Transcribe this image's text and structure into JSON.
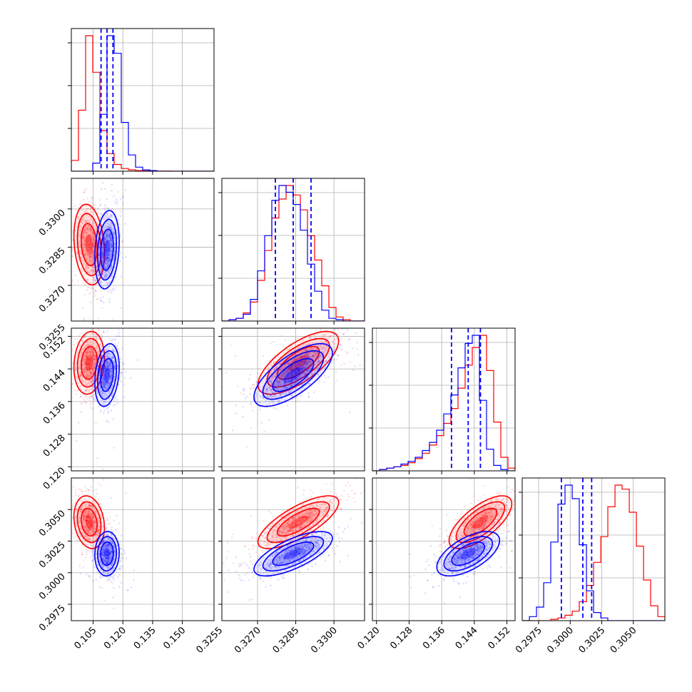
{
  "colors": {
    "series_a": "#ff0000",
    "series_b": "#0000ff",
    "grid": "#b0b0b0",
    "axis": "#000000"
  },
  "chart_data": {
    "type": "scatter",
    "variant": "corner-plot",
    "title": "",
    "grid": true,
    "legend": "none",
    "parameters": [
      {
        "xlim": [
          0.094,
          0.166
        ],
        "ticks": [
          "0.105",
          "0.120",
          "0.135",
          "0.150"
        ],
        "tick_values": [
          0.105,
          0.12,
          0.135,
          0.15
        ]
      },
      {
        "xlim": [
          0.3256,
          0.3312
        ],
        "ticks": [
          "0.3255",
          "0.3270",
          "0.3285",
          "0.3300"
        ],
        "tick_values": [
          0.3255,
          0.327,
          0.3285,
          0.33
        ]
      },
      {
        "xlim": [
          0.119,
          0.154
        ],
        "ticks": [
          "0.120",
          "0.128",
          "0.136",
          "0.144",
          "0.152"
        ],
        "tick_values": [
          0.12,
          0.128,
          0.136,
          0.144,
          0.152
        ]
      },
      {
        "xlim": [
          0.2962,
          0.3075
        ],
        "ticks": [
          "0.2975",
          "0.3000",
          "0.3025",
          "0.3050"
        ],
        "tick_values": [
          0.2975,
          0.3,
          0.3025,
          0.305
        ]
      }
    ],
    "series": [
      {
        "color": "#ff0000",
        "means": [
          0.103,
          0.3286,
          0.1455,
          0.304
        ],
        "sds": [
          0.0035,
          0.00072,
          0.0035,
          0.00095
        ],
        "correlations": {
          "0-1": -0.2,
          "0-2": 0.15,
          "0-3": -0.2,
          "1-2": 0.7,
          "1-3": 0.75,
          "2-3": 0.7
        },
        "histograms": [
          {
            "edges": [
              0.094,
              0.0976,
              0.1012,
              0.1048,
              0.1084,
              0.112,
              0.1156,
              0.1192,
              0.1228,
              0.1264,
              0.13,
              0.1336,
              0.1372,
              0.1408,
              0.1444,
              0.148,
              0.1516,
              0.1552,
              0.1588,
              0.1624,
              0.166
            ],
            "counts": [
              0.08,
              0.45,
              1.0,
              0.73,
              0.3,
              0.13,
              0.05,
              0.02,
              0.01,
              0.005,
              0.003,
              0.002,
              0.001,
              0.001,
              0,
              0,
              0,
              0,
              0,
              0
            ]
          },
          {
            "edges": [
              0.3256,
              0.32588,
              0.32616,
              0.32644,
              0.32672,
              0.327,
              0.32728,
              0.32756,
              0.32784,
              0.32812,
              0.3284,
              0.32868,
              0.32896,
              0.32924,
              0.32952,
              0.3298,
              0.33008,
              0.33036,
              0.33064,
              0.33092,
              0.3312
            ],
            "counts": [
              0,
              0.01,
              0.02,
              0.06,
              0.14,
              0.3,
              0.52,
              0.76,
              0.9,
              1.0,
              0.93,
              0.82,
              0.63,
              0.45,
              0.26,
              0.1,
              0.03,
              0.01,
              0,
              0
            ]
          },
          {
            "edges": [
              0.119,
              0.12075,
              0.1225,
              0.12425,
              0.126,
              0.12775,
              0.1295,
              0.13125,
              0.133,
              0.13475,
              0.1365,
              0.13825,
              0.14,
              0.14175,
              0.1435,
              0.14525,
              0.147,
              0.14875,
              0.1505,
              0.15225,
              0.154
            ],
            "counts": [
              0,
              0.01,
              0.02,
              0.03,
              0.04,
              0.06,
              0.09,
              0.13,
              0.19,
              0.26,
              0.35,
              0.46,
              0.61,
              0.78,
              0.91,
              1.0,
              0.74,
              0.36,
              0.1,
              0.02
            ]
          },
          {
            "edges": [
              0.2962,
              0.29677,
              0.29733,
              0.2979,
              0.29846,
              0.29903,
              0.29959,
              0.30016,
              0.30072,
              0.30129,
              0.30185,
              0.30242,
              0.30298,
              0.30355,
              0.30411,
              0.30468,
              0.30524,
              0.30581,
              0.30637,
              0.30694,
              0.3075
            ],
            "counts": [
              0,
              0,
              0,
              0,
              0.01,
              0.02,
              0.04,
              0.07,
              0.14,
              0.26,
              0.43,
              0.62,
              0.84,
              1.0,
              0.97,
              0.8,
              0.55,
              0.3,
              0.11,
              0.03
            ]
          }
        ]
      },
      {
        "color": "#0000ff",
        "means": [
          0.112,
          0.3284,
          0.1425,
          0.3015
        ],
        "sds": [
          0.0028,
          0.0007,
          0.0035,
          0.0008
        ],
        "correlations": {
          "0-1": 0.2,
          "0-2": 0.25,
          "0-3": 0.05,
          "1-2": 0.7,
          "1-3": 0.7,
          "2-3": 0.6
        },
        "quantile_lines": [
          [
            0.109,
            0.112,
            0.115
          ],
          [
            0.3277,
            0.3284,
            0.3291
          ],
          [
            0.1384,
            0.1425,
            0.1455
          ],
          [
            0.2993,
            0.301,
            0.3017
          ]
        ],
        "histograms": [
          {
            "edges": [
              0.094,
              0.0976,
              0.1012,
              0.1048,
              0.1084,
              0.112,
              0.1156,
              0.1192,
              0.1228,
              0.1264,
              0.13,
              0.1336,
              0.1372,
              0.1408,
              0.1444,
              0.148,
              0.1516,
              0.1552,
              0.1588,
              0.1624,
              0.166
            ],
            "counts": [
              0,
              0,
              0,
              0.06,
              0.42,
              1.0,
              0.87,
              0.36,
              0.12,
              0.03,
              0.01,
              0.005,
              0,
              0,
              0,
              0,
              0,
              0,
              0,
              0
            ]
          },
          {
            "edges": [
              0.3256,
              0.32588,
              0.32616,
              0.32644,
              0.32672,
              0.327,
              0.32728,
              0.32756,
              0.32784,
              0.32812,
              0.3284,
              0.32868,
              0.32896,
              0.32924,
              0.32952,
              0.3298,
              0.33008,
              0.33036,
              0.33064,
              0.33092,
              0.3312
            ],
            "counts": [
              0,
              0.01,
              0.02,
              0.05,
              0.16,
              0.37,
              0.63,
              0.89,
              1.0,
              0.95,
              0.86,
              0.67,
              0.42,
              0.22,
              0.08,
              0.02,
              0.01,
              0,
              0,
              0
            ]
          },
          {
            "edges": [
              0.119,
              0.12075,
              0.1225,
              0.12425,
              0.126,
              0.12775,
              0.1295,
              0.13125,
              0.133,
              0.13475,
              0.1365,
              0.13825,
              0.14,
              0.14175,
              0.1435,
              0.14525,
              0.147,
              0.14875,
              0.1505,
              0.15225,
              0.154
            ],
            "counts": [
              0,
              0.01,
              0.02,
              0.03,
              0.05,
              0.07,
              0.1,
              0.15,
              0.21,
              0.3,
              0.42,
              0.56,
              0.76,
              0.94,
              1.0,
              0.52,
              0.16,
              0.04,
              0.01,
              0
            ]
          },
          {
            "edges": [
              0.2962,
              0.29677,
              0.29733,
              0.2979,
              0.29846,
              0.29903,
              0.29959,
              0.30016,
              0.30072,
              0.30129,
              0.30185,
              0.30242,
              0.30298,
              0.30355,
              0.30411,
              0.30468,
              0.30524,
              0.30581,
              0.30637,
              0.30694,
              0.3075
            ],
            "counts": [
              0,
              0.03,
              0.1,
              0.28,
              0.58,
              0.86,
              1.0,
              0.9,
              0.56,
              0.22,
              0.06,
              0.02,
              0,
              0,
              0,
              0,
              0,
              0,
              0,
              0
            ]
          }
        ]
      }
    ]
  }
}
